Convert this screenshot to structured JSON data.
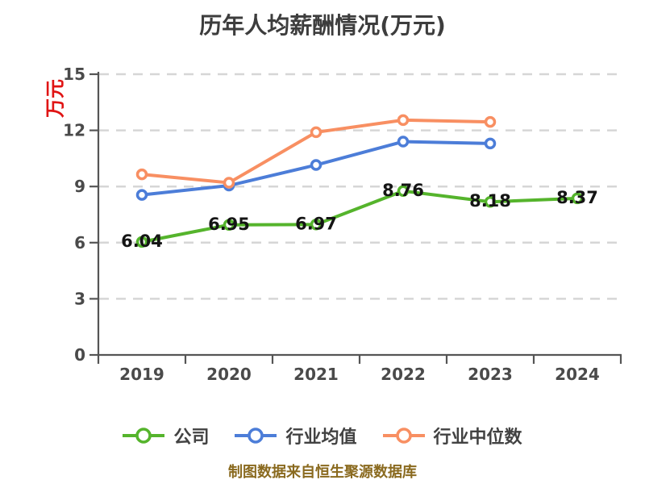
{
  "chart_data": {
    "type": "line",
    "title": "历年人均薪酬情况(万元)",
    "xlabel": "",
    "ylabel": "万元",
    "ylabel_color": "#e01414",
    "categories": [
      "2019",
      "2020",
      "2021",
      "2022",
      "2023",
      "2024"
    ],
    "ylim": [
      0,
      15
    ],
    "y_ticks": [
      0,
      3,
      6,
      9,
      12,
      15
    ],
    "grid": "horizontal-dashed",
    "legend_position": "bottom",
    "series": [
      {
        "key": "company",
        "name": "公司",
        "color": "#55b42c",
        "values": [
          6.04,
          6.95,
          6.97,
          8.76,
          8.18,
          8.37
        ],
        "point_labels": [
          "6.04",
          "6.95",
          "6.97",
          "8.76",
          "8.18",
          "8.37"
        ]
      },
      {
        "key": "industry-average",
        "name": "行业均值",
        "color": "#4c7dd8",
        "values": [
          8.55,
          9.05,
          10.15,
          11.4,
          11.3
        ],
        "point_labels": null
      },
      {
        "key": "industry-median",
        "name": "行业中位数",
        "color": "#f88f62",
        "values": [
          9.65,
          9.2,
          11.9,
          12.55,
          12.45
        ],
        "point_labels": null
      }
    ]
  },
  "footer": {
    "text": "制图数据来自恒生聚源数据库",
    "color": "#8a6a1f"
  },
  "style_colors": {
    "title": "#3d3d3d",
    "axis_line": "#555555",
    "tick_label": "#4a4a4a",
    "gridline": "#d6d6d6",
    "data_label": "#141414",
    "marker_fill": "#ffffff"
  }
}
